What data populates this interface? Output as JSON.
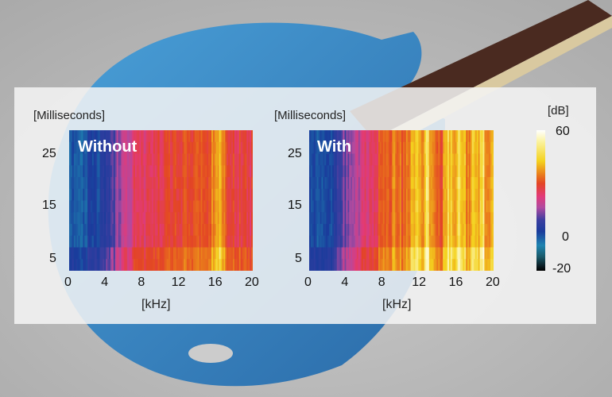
{
  "chart_data": [
    {
      "type": "heatmap",
      "label": "Without",
      "ylabel": "[Milliseconds]",
      "xlabel": "[kHz]",
      "x_ticks": [
        "0",
        "4",
        "8",
        "12",
        "16",
        "20"
      ],
      "y_ticks": [
        "5",
        "15",
        "25"
      ],
      "xlim": [
        0,
        20
      ],
      "ylim": [
        2.7,
        29.5
      ],
      "freq_step_khz": 0.5,
      "level_db_by_freq": [
        8,
        6,
        7,
        8,
        9,
        10,
        10,
        11,
        14,
        18,
        22,
        24,
        26,
        28,
        30,
        30,
        31,
        31,
        32,
        33,
        34,
        36,
        35,
        37,
        36,
        37,
        36,
        37,
        38,
        37,
        36,
        44,
        47,
        44,
        36,
        35,
        34,
        35,
        34,
        33
      ]
    },
    {
      "type": "heatmap",
      "label": "With",
      "ylabel": "[Milliseconds]",
      "xlabel": "[kHz]",
      "x_ticks": [
        "0",
        "4",
        "8",
        "12",
        "16",
        "20"
      ],
      "y_ticks": [
        "5",
        "15",
        "25"
      ],
      "xlim": [
        0,
        20
      ],
      "ylim": [
        2.7,
        29.5
      ],
      "freq_step_khz": 0.5,
      "level_db_by_freq": [
        9,
        7,
        8,
        8,
        10,
        12,
        16,
        20,
        22,
        24,
        26,
        28,
        30,
        32,
        34,
        38,
        40,
        38,
        42,
        40,
        38,
        42,
        48,
        50,
        46,
        52,
        44,
        40,
        38,
        46,
        50,
        44,
        52,
        48,
        42,
        50,
        46,
        52,
        44,
        46
      ]
    }
  ],
  "colorbar": {
    "unit": "[dB]",
    "ticks": [
      "60",
      "0",
      "-20"
    ],
    "range": [
      -20,
      60
    ]
  }
}
